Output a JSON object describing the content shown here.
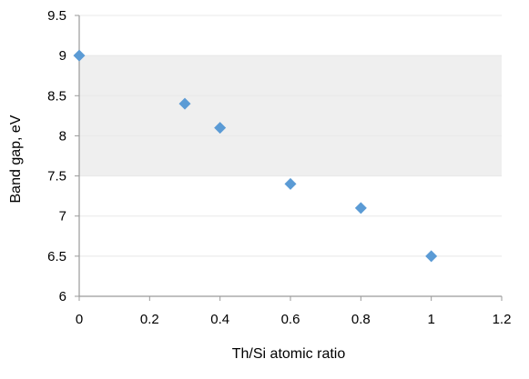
{
  "chart_data": {
    "type": "scatter",
    "xlabel": "Th/Si  atomic ratio",
    "ylabel": "Band gap,  eV",
    "xlim": [
      0,
      1.2
    ],
    "ylim": [
      6,
      9.5
    ],
    "x_ticks": [
      "0",
      "0.2",
      "0.4",
      "0.6",
      "0.8",
      "1",
      "1.2"
    ],
    "y_ticks": [
      "6",
      "6.5",
      "7",
      "7.5",
      "8",
      "8.5",
      "9",
      "9.5"
    ],
    "grid": "horizontal",
    "shaded_band": [
      7.5,
      9.0
    ],
    "series": [
      {
        "x": [
          0,
          0.3,
          0.4,
          0.6,
          0.8,
          1.0
        ],
        "y": [
          9.0,
          8.4,
          8.1,
          7.4,
          7.1,
          6.5
        ]
      }
    ],
    "colors": {
      "marker": "#5b9bd5",
      "band": "#efefef",
      "grid": "#e8e8e8",
      "axis": "#9a9a9a"
    }
  }
}
